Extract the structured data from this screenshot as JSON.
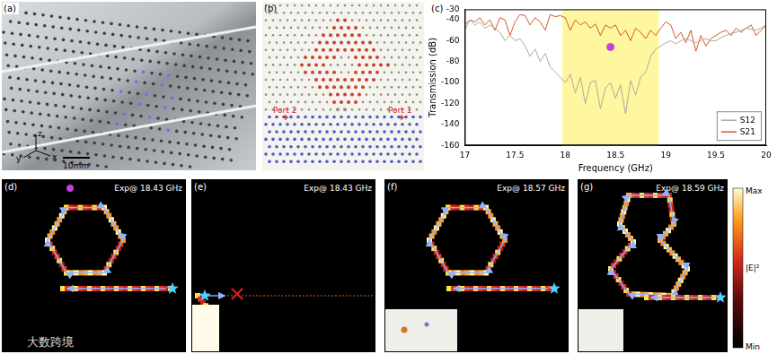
{
  "figure": {
    "panels": [
      {
        "label": "(a)",
        "scale_bar": "10mm",
        "axis_letters": [
          "z",
          "y",
          "x"
        ]
      },
      {
        "label": "(b)",
        "ports": [
          "Port 2",
          "Port 1"
        ]
      },
      {
        "label": "(c)"
      },
      {
        "label": "(d)",
        "title": "Exp@ 18.43 GHz"
      },
      {
        "label": "(e)",
        "title": "Exp@ 18.43 GHz"
      },
      {
        "label": "(f)",
        "title": "Exp@ 18.57 GHz"
      },
      {
        "label": "(g)",
        "title": "Exp@ 18.59 GHz"
      }
    ],
    "colorbar": {
      "top": "Max",
      "middle": "|E|²",
      "bottom": "Min"
    },
    "watermark": "大数跨境"
  },
  "chart_data": {
    "type": "line",
    "x_label": "Frequency (GHz)",
    "y_label": "Transmission (dB)",
    "xlim": [
      17,
      20
    ],
    "xticks": [
      17,
      17.5,
      18,
      18.5,
      19,
      19.5,
      20
    ],
    "ylim": [
      -160,
      -30
    ],
    "yticks": [
      -30,
      -40,
      -60,
      -80,
      -100,
      -120,
      -140,
      -160
    ],
    "grid": false,
    "legend": "lower right",
    "highlight": {
      "x": [
        17.97,
        18.93
      ],
      "color": "#fff7a0"
    },
    "marker_point": {
      "x": 18.45,
      "y": -66,
      "color": "#c23fe0"
    },
    "x": [
      17,
      17.05,
      17.1,
      17.15,
      17.2,
      17.25,
      17.3,
      17.35,
      17.4,
      17.45,
      17.5,
      17.55,
      17.6,
      17.65,
      17.7,
      17.75,
      17.8,
      17.85,
      17.9,
      17.95,
      18,
      18.05,
      18.1,
      18.15,
      18.2,
      18.25,
      18.3,
      18.35,
      18.4,
      18.45,
      18.5,
      18.55,
      18.6,
      18.65,
      18.7,
      18.75,
      18.8,
      18.85,
      18.9,
      18.95,
      19,
      19.05,
      19.1,
      19.15,
      19.2,
      19.25,
      19.3,
      19.35,
      19.4,
      19.45,
      19.5,
      19.55,
      19.6,
      19.65,
      19.7,
      19.75,
      19.8,
      19.85,
      19.9,
      19.95,
      20
    ],
    "series": [
      {
        "name": "S12",
        "color": "#a9ab9a",
        "values": [
          -50,
          -40,
          -45,
          -42,
          -48,
          -45,
          -48,
          -52,
          -60,
          -55,
          -60,
          -58,
          -65,
          -75,
          -68,
          -80,
          -72,
          -85,
          -90,
          -95,
          -100,
          -92,
          -110,
          -95,
          -120,
          -100,
          -98,
          -125,
          -105,
          -100,
          -115,
          -102,
          -130,
          -98,
          -112,
          -95,
          -90,
          -75,
          -68,
          -65,
          -62,
          -60,
          -63,
          -60,
          -58,
          -60,
          -62,
          -60,
          -58,
          -60,
          -60,
          -57,
          -55,
          -53,
          -52,
          -50,
          -48,
          -49,
          -50,
          -48,
          -45
        ]
      },
      {
        "name": "S21",
        "color": "#d2572a",
        "values": [
          -45,
          -40,
          -42,
          -38,
          -45,
          -40,
          -50,
          -38,
          -40,
          -55,
          -42,
          -35,
          -36,
          -45,
          -38,
          -42,
          -50,
          -35,
          -37,
          -36,
          -38,
          -50,
          -40,
          -45,
          -42,
          -48,
          -44,
          -55,
          -45,
          -48,
          -45,
          -55,
          -50,
          -60,
          -48,
          -52,
          -58,
          -50,
          -55,
          -48,
          -42,
          -45,
          -58,
          -52,
          -62,
          -50,
          -70,
          -55,
          -65,
          -58,
          -55,
          -52,
          -50,
          -55,
          -48,
          -52,
          -48,
          -45,
          -55,
          -50,
          -45
        ]
      }
    ]
  }
}
